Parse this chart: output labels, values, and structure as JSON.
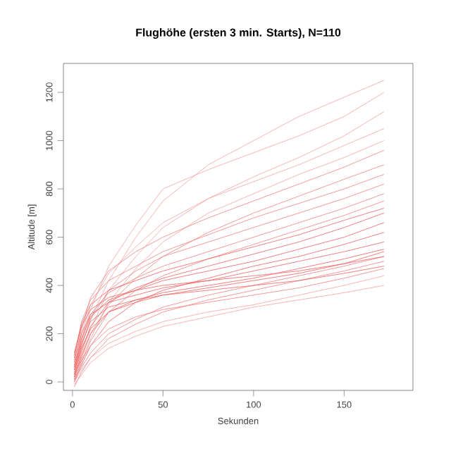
{
  "chart_data": {
    "type": "line",
    "title": "Flughöhe (ersten 3 min. Starts), N=110",
    "xlabel": "Sekunden",
    "ylabel": "Altitude [m]",
    "x": [
      1,
      5,
      10,
      20,
      35,
      50,
      75,
      100,
      125,
      150,
      172
    ],
    "xlim": [
      -5,
      188
    ],
    "xticks": [
      0,
      50,
      100,
      150
    ],
    "ylim": [
      -35,
      1320
    ],
    "yticks": [
      0,
      200,
      400,
      600,
      800,
      1000,
      1200
    ],
    "grid": false,
    "marker": "none",
    "line_style": "solid",
    "series": [
      {
        "color": "#f5a0a0",
        "values": [
          20,
          150,
          260,
          420,
          600,
          750,
          900,
          1000,
          1100,
          1180,
          1250
        ]
      },
      {
        "color": "#f5a0a0",
        "values": [
          30,
          180,
          300,
          480,
          650,
          800,
          880,
          950,
          1020,
          1100,
          1200
        ]
      },
      {
        "color": "#f5a0a0",
        "values": [
          10,
          120,
          220,
          380,
          520,
          640,
          760,
          850,
          930,
          1020,
          1120
        ]
      },
      {
        "color": "#f5a0a0",
        "values": [
          50,
          200,
          320,
          450,
          560,
          660,
          760,
          830,
          900,
          980,
          1050
        ]
      },
      {
        "color": "#f5a0a0",
        "values": [
          0,
          90,
          180,
          330,
          470,
          580,
          700,
          780,
          860,
          930,
          1000
        ]
      },
      {
        "color": "#f08080",
        "values": [
          80,
          220,
          350,
          460,
          540,
          600,
          680,
          750,
          820,
          890,
          960
        ]
      },
      {
        "color": "#f08080",
        "values": [
          20,
          100,
          200,
          320,
          430,
          520,
          620,
          700,
          770,
          840,
          900
        ]
      },
      {
        "color": "#f08080",
        "values": [
          100,
          250,
          340,
          420,
          480,
          540,
          610,
          680,
          740,
          800,
          860
        ]
      },
      {
        "color": "#f08080",
        "values": [
          40,
          150,
          260,
          380,
          460,
          520,
          580,
          640,
          700,
          760,
          820
        ]
      },
      {
        "color": "#f08080",
        "values": [
          60,
          170,
          280,
          370,
          430,
          480,
          540,
          600,
          660,
          720,
          780
        ]
      },
      {
        "color": "#f08080",
        "values": [
          10,
          80,
          170,
          290,
          380,
          440,
          510,
          570,
          630,
          690,
          750
        ]
      },
      {
        "color": "#ee6060",
        "values": [
          120,
          240,
          320,
          380,
          420,
          460,
          510,
          560,
          610,
          670,
          720
        ]
      },
      {
        "color": "#ee6060",
        "values": [
          30,
          130,
          230,
          330,
          390,
          430,
          480,
          530,
          580,
          640,
          700
        ]
      },
      {
        "color": "#ee6060",
        "values": [
          70,
          180,
          270,
          340,
          380,
          420,
          460,
          500,
          550,
          600,
          660
        ]
      },
      {
        "color": "#ee6060",
        "values": [
          0,
          70,
          150,
          250,
          330,
          380,
          430,
          480,
          520,
          570,
          620
        ]
      },
      {
        "color": "#ee6060",
        "values": [
          90,
          200,
          280,
          330,
          360,
          390,
          420,
          460,
          500,
          540,
          580
        ]
      },
      {
        "color": "#ee6060",
        "values": [
          20,
          110,
          200,
          290,
          340,
          370,
          400,
          430,
          470,
          510,
          550
        ]
      },
      {
        "color": "#ee6060",
        "values": [
          50,
          140,
          220,
          290,
          330,
          360,
          390,
          420,
          450,
          490,
          540
        ]
      },
      {
        "color": "#f08080",
        "values": [
          10,
          60,
          120,
          200,
          260,
          310,
          360,
          400,
          440,
          480,
          520
        ]
      },
      {
        "color": "#f08080",
        "values": [
          -20,
          40,
          100,
          180,
          240,
          290,
          340,
          380,
          420,
          460,
          500
        ]
      },
      {
        "color": "#f08080",
        "values": [
          30,
          90,
          150,
          220,
          270,
          300,
          330,
          360,
          390,
          430,
          470
        ]
      },
      {
        "color": "#f5a0a0",
        "values": [
          0,
          50,
          100,
          160,
          210,
          250,
          290,
          320,
          360,
          400,
          440
        ]
      },
      {
        "color": "#f5a0a0",
        "values": [
          -10,
          30,
          80,
          140,
          190,
          230,
          270,
          310,
          340,
          370,
          400
        ]
      },
      {
        "color": "#ee6060",
        "values": [
          110,
          230,
          300,
          350,
          380,
          400,
          420,
          440,
          460,
          490,
          520
        ]
      },
      {
        "color": "#ee6060",
        "values": [
          60,
          160,
          250,
          310,
          340,
          360,
          380,
          400,
          420,
          450,
          480
        ]
      }
    ]
  }
}
